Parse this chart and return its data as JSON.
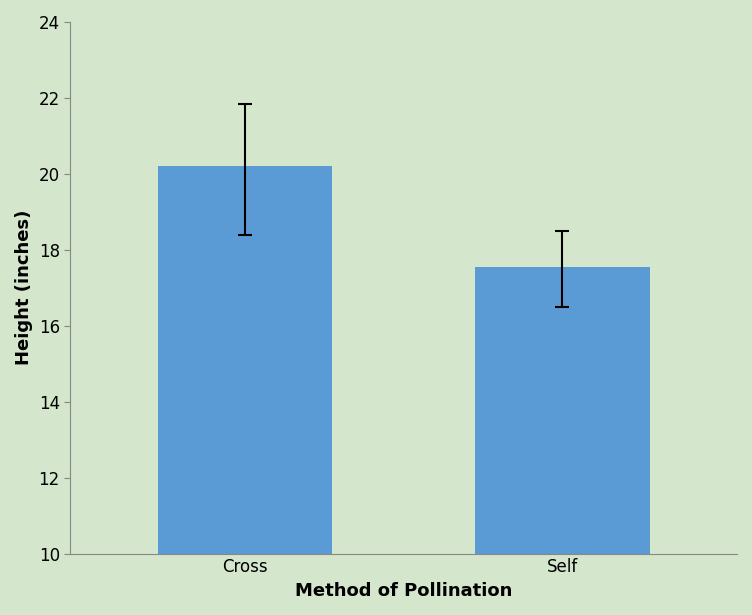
{
  "categories": [
    "Cross",
    "Self"
  ],
  "values": [
    20.2,
    17.55
  ],
  "errors_up": [
    1.65,
    0.95
  ],
  "errors_down": [
    1.8,
    1.05
  ],
  "bar_color": "#5B9BD5",
  "bar_width": 0.55,
  "ylim": [
    10,
    24
  ],
  "yticks": [
    10,
    12,
    14,
    16,
    18,
    20,
    22,
    24
  ],
  "xlabel": "Method of Pollination",
  "ylabel": "Height (inches)",
  "xlabel_fontsize": 13,
  "ylabel_fontsize": 13,
  "tick_fontsize": 12,
  "background_color": "#D4E6CB",
  "error_capsize": 5,
  "error_linewidth": 1.5
}
